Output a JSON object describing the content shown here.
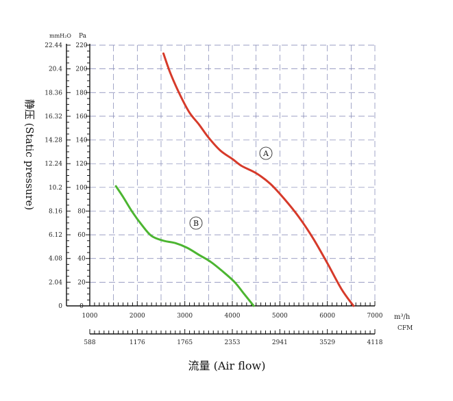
{
  "chart_data": {
    "type": "line",
    "title": "",
    "xlabel": "流量 (Air flow)",
    "ylabel": "静压 (Static pressure)",
    "x_unit_primary": "m³/h",
    "x_unit_secondary": "CFM",
    "y_unit_left": "mmH₂O",
    "y_unit_right": "Pa",
    "xlim": [
      1000,
      7000
    ],
    "ylim": [
      0,
      220
    ],
    "grid": true,
    "x_ticks": [
      "1000",
      "2000",
      "3000",
      "4000",
      "5000",
      "6000",
      "7000"
    ],
    "cfm_ticks": [
      "588",
      "1176",
      "1765",
      "2353",
      "2941",
      "3529",
      "4118"
    ],
    "y_ticks_pa": [
      "0",
      "20",
      "40",
      "60",
      "80",
      "100",
      "120",
      "140",
      "160",
      "180",
      "200",
      "220"
    ],
    "y_ticks_mmh2o": [
      "0",
      "2.04",
      "4.08",
      "6.12",
      "8.16",
      "10.2",
      "12.24",
      "14.28",
      "16.32",
      "18.36",
      "20.4",
      "22.44"
    ],
    "series": [
      {
        "name": "A",
        "color": "#d63a2a",
        "x": [
          2550,
          2700,
          2900,
          3100,
          3300,
          3500,
          3750,
          4000,
          4200,
          4500,
          4800,
          5100,
          5400,
          5700,
          6000,
          6300,
          6550
        ],
        "y": [
          213,
          196,
          178,
          163,
          153,
          142,
          131,
          124,
          118,
          112,
          103,
          90,
          75,
          57,
          36,
          14,
          0
        ]
      },
      {
        "name": "B",
        "color": "#4cb531",
        "x": [
          1550,
          1700,
          1900,
          2100,
          2300,
          2550,
          2800,
          3050,
          3300,
          3550,
          3800,
          4050,
          4250,
          4450
        ],
        "y": [
          101,
          92,
          79,
          68,
          59,
          55,
          53,
          49,
          43,
          37,
          29,
          20,
          10,
          0
        ]
      }
    ]
  }
}
